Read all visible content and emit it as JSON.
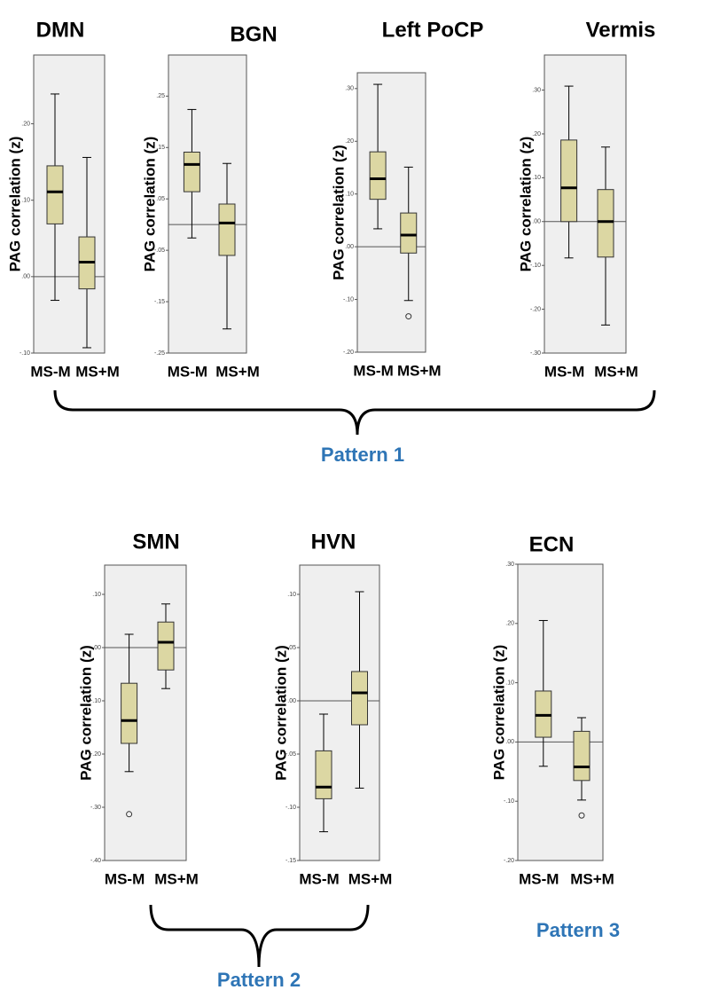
{
  "chart_data": [
    {
      "type": "box",
      "title": "DMN",
      "y_label": "PAG  correlation (z)",
      "categories": [
        "MS-M",
        "MS+M"
      ],
      "ylim": [
        -0.1,
        0.29
      ],
      "yticks": [
        {
          "value": -0.1,
          "label": "-.10"
        },
        {
          "value": 0,
          "label": ".00"
        },
        {
          "value": 0.1,
          "label": ".10"
        },
        {
          "value": 0.2,
          "label": ".20"
        }
      ],
      "boxes": [
        {
          "min": -0.031,
          "q1": 0.069,
          "median": 0.111,
          "q3": 0.145,
          "max": 0.239,
          "outliers": []
        },
        {
          "min": -0.093,
          "q1": -0.016,
          "median": 0.019,
          "q3": 0.052,
          "max": 0.156,
          "outliers": []
        }
      ],
      "color": "#dcd7a3"
    },
    {
      "type": "box",
      "title": "BGN",
      "y_label": "PAG  correlation (z)",
      "categories": [
        "MS-M",
        "MS+M"
      ],
      "ylim": [
        -0.25,
        0.33
      ],
      "yticks": [
        {
          "value": -0.25,
          "label": "-.25"
        },
        {
          "value": -0.15,
          "label": "-.15"
        },
        {
          "value": -0.05,
          "label": "-.05"
        },
        {
          "value": 0.05,
          "label": ".05"
        },
        {
          "value": 0.15,
          "label": ".15"
        },
        {
          "value": 0.25,
          "label": ".25"
        }
      ],
      "boxes": [
        {
          "min": -0.026,
          "q1": 0.064,
          "median": 0.117,
          "q3": 0.141,
          "max": 0.224,
          "outliers": []
        },
        {
          "min": -0.203,
          "q1": -0.06,
          "median": 0.003,
          "q3": 0.04,
          "max": 0.119,
          "outliers": []
        }
      ],
      "color": "#dcd7a3"
    },
    {
      "type": "box",
      "title": "Left PoCP",
      "y_label": "PAG  correlation (z)",
      "categories": [
        "MS-M",
        "MS+M"
      ],
      "ylim": [
        -0.2,
        0.33
      ],
      "yticks": [
        {
          "value": -0.2,
          "label": "-.20"
        },
        {
          "value": -0.1,
          "label": "-.10"
        },
        {
          "value": 0,
          "label": ".00"
        },
        {
          "value": 0.1,
          "label": ".10"
        },
        {
          "value": 0.2,
          "label": ".20"
        },
        {
          "value": 0.3,
          "label": ".30"
        }
      ],
      "boxes": [
        {
          "min": 0.034,
          "q1": 0.09,
          "median": 0.129,
          "q3": 0.18,
          "max": 0.308,
          "outliers": []
        },
        {
          "min": -0.102,
          "q1": -0.012,
          "median": 0.022,
          "q3": 0.064,
          "max": 0.151,
          "outliers": [
            -0.132
          ]
        }
      ],
      "color": "#dcd7a3"
    },
    {
      "type": "box",
      "title": "Vermis",
      "y_label": "PAG  correlation (z)",
      "categories": [
        "MS-M",
        "MS+M"
      ],
      "ylim": [
        -0.3,
        0.38
      ],
      "yticks": [
        {
          "value": -0.3,
          "label": "-.30"
        },
        {
          "value": -0.2,
          "label": "-.20"
        },
        {
          "value": -0.1,
          "label": "-.10"
        },
        {
          "value": 0,
          "label": ".00"
        },
        {
          "value": 0.1,
          "label": ".10"
        },
        {
          "value": 0.2,
          "label": ".20"
        },
        {
          "value": 0.3,
          "label": ".30"
        }
      ],
      "boxes": [
        {
          "min": -0.083,
          "q1": 0,
          "median": 0.077,
          "q3": 0.186,
          "max": 0.309,
          "outliers": []
        },
        {
          "min": -0.236,
          "q1": -0.081,
          "median": 0,
          "q3": 0.073,
          "max": 0.17,
          "outliers": []
        }
      ],
      "color": "#dcd7a3"
    },
    {
      "type": "box",
      "title": "SMN",
      "y_label": "PAG  correlation (z)",
      "categories": [
        "MS-M",
        "MS+M"
      ],
      "ylim": [
        -0.4,
        0.155
      ],
      "yticks": [
        {
          "value": -0.4,
          "label": "-.40"
        },
        {
          "value": -0.3,
          "label": "-.30"
        },
        {
          "value": -0.2,
          "label": "-.20"
        },
        {
          "value": -0.1,
          "label": "-.10"
        },
        {
          "value": 0,
          "label": ".00"
        },
        {
          "value": 0.1,
          "label": ".10"
        }
      ],
      "boxes": [
        {
          "min": -0.233,
          "q1": -0.18,
          "median": -0.137,
          "q3": -0.067,
          "max": 0.025,
          "outliers": [
            -0.313
          ]
        },
        {
          "min": -0.077,
          "q1": -0.042,
          "median": 0.01,
          "q3": 0.048,
          "max": 0.082,
          "outliers": []
        }
      ],
      "color": "#dcd7a3"
    },
    {
      "type": "box",
      "title": "HVN",
      "y_label": "PAG  correlation (z)",
      "categories": [
        "MS-M",
        "MS+M"
      ],
      "ylim": [
        -0.15,
        0.1275
      ],
      "yticks": [
        {
          "value": -0.15,
          "label": "-.15"
        },
        {
          "value": -0.1,
          "label": "-.10"
        },
        {
          "value": -0.05,
          "label": "-.05"
        },
        {
          "value": 0,
          "label": ".00"
        },
        {
          "value": 0.05,
          "label": ".05"
        },
        {
          "value": 0.1,
          "label": ".10"
        }
      ],
      "boxes": [
        {
          "min": -0.123,
          "q1": -0.092,
          "median": -0.081,
          "q3": -0.047,
          "max": -0.0125,
          "outliers": []
        },
        {
          "min": -0.082,
          "q1": -0.0225,
          "median": 0.0075,
          "q3": 0.0275,
          "max": 0.1025,
          "outliers": []
        }
      ],
      "color": "#dcd7a3"
    },
    {
      "type": "box",
      "title": "ECN",
      "y_label": "PAG  correlation (z)",
      "categories": [
        "MS-M",
        "MS+M"
      ],
      "ylim": [
        -0.2,
        0.3
      ],
      "yticks": [
        {
          "value": -0.2,
          "label": "-.20"
        },
        {
          "value": -0.1,
          "label": "-.10"
        },
        {
          "value": 0,
          "label": ".00"
        },
        {
          "value": 0.1,
          "label": ".10"
        },
        {
          "value": 0.2,
          "label": ".20"
        },
        {
          "value": 0.3,
          "label": ".30"
        }
      ],
      "boxes": [
        {
          "min": -0.041,
          "q1": 0.008,
          "median": 0.045,
          "q3": 0.086,
          "max": 0.205,
          "outliers": []
        },
        {
          "min": -0.098,
          "q1": -0.065,
          "median": -0.042,
          "q3": 0.018,
          "max": 0.041,
          "outliers": [
            -0.124
          ]
        }
      ],
      "color": "#dcd7a3"
    }
  ],
  "patterns": [
    "Pattern 1",
    "Pattern 2",
    "Pattern 3"
  ]
}
